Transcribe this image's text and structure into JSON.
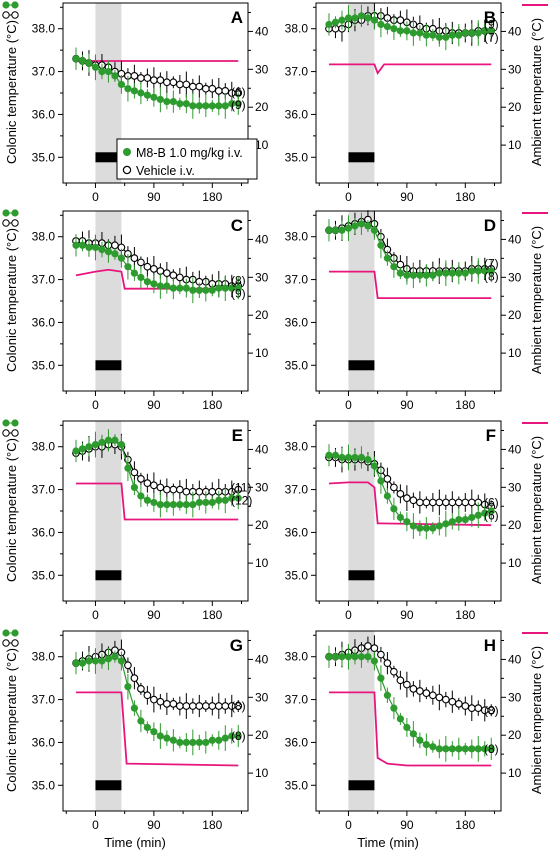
{
  "figure": {
    "left_axis_label": "Colonic temperature (°C)",
    "right_axis_label": "Ambient temperature (°C)",
    "x_axis_label": "Time (min)"
  },
  "legend": {
    "treatment_label": "M8-B 1.0 mg/kg i.v.",
    "vehicle_label": "Vehicle i.v."
  },
  "colors": {
    "treatment": "#2e9b2e",
    "vehicle": "#000000",
    "ambient": "#e8157d",
    "shade": "#dcdcdc",
    "bar": "#000000"
  },
  "chart_data": [
    {
      "type": "line",
      "panel_label": "A",
      "x": [
        -30,
        -20,
        -10,
        0,
        10,
        20,
        30,
        40,
        50,
        60,
        70,
        80,
        90,
        100,
        110,
        120,
        130,
        140,
        150,
        160,
        170,
        180,
        190,
        200,
        210,
        220
      ],
      "series": [
        {
          "role": "vehicle",
          "n_label": "(6)",
          "values": [
            37.3,
            37.25,
            37.2,
            37.15,
            37.15,
            37.1,
            37.0,
            36.95,
            36.9,
            36.9,
            36.85,
            36.85,
            36.8,
            36.8,
            36.75,
            36.75,
            36.7,
            36.7,
            36.65,
            36.65,
            36.6,
            36.6,
            36.55,
            36.55,
            36.5,
            36.5
          ]
        },
        {
          "role": "treatment",
          "n_label": "(9)",
          "values": [
            37.3,
            37.25,
            37.2,
            37.1,
            37.0,
            37.0,
            36.9,
            36.7,
            36.6,
            36.55,
            36.5,
            36.45,
            36.4,
            36.35,
            36.3,
            36.3,
            36.25,
            36.25,
            36.2,
            36.2,
            36.2,
            36.2,
            36.2,
            36.2,
            36.25,
            36.25
          ]
        }
      ],
      "ambient": {
        "x": [
          -30,
          220
        ],
        "values": [
          32.2,
          32.2
        ]
      },
      "xlim": [
        -50,
        235
      ],
      "ylim": [
        34.4,
        38.6
      ],
      "y2lim": [
        0,
        47.5
      ],
      "xticks": [
        0,
        90,
        180
      ],
      "yticks": [
        35,
        36,
        37,
        38
      ],
      "y2ticks": [
        10,
        20,
        30,
        40
      ],
      "shade_range": [
        0,
        40
      ]
    },
    {
      "type": "line",
      "panel_label": "B",
      "x": [
        -30,
        -20,
        -10,
        0,
        10,
        20,
        30,
        40,
        50,
        60,
        70,
        80,
        90,
        100,
        110,
        120,
        130,
        140,
        150,
        160,
        170,
        180,
        190,
        200,
        210,
        220
      ],
      "series": [
        {
          "role": "vehicle",
          "n_label": "(9)",
          "values": [
            38.0,
            38.0,
            38.0,
            38.1,
            38.2,
            38.2,
            38.3,
            38.3,
            38.3,
            38.25,
            38.2,
            38.2,
            38.15,
            38.1,
            38.05,
            38.0,
            38.0,
            37.95,
            37.95,
            37.9,
            37.9,
            37.9,
            37.9,
            37.95,
            37.95,
            37.95
          ]
        },
        {
          "role": "treatment",
          "n_label": "(7)",
          "values": [
            38.1,
            38.15,
            38.2,
            38.25,
            38.25,
            38.3,
            38.25,
            38.2,
            38.1,
            38.05,
            38.0,
            37.95,
            37.95,
            37.9,
            37.9,
            37.85,
            37.85,
            37.8,
            37.8,
            37.85,
            37.85,
            37.9,
            37.9,
            37.9,
            37.95,
            37.95
          ]
        }
      ],
      "ambient": {
        "x": [
          -30,
          40,
          45,
          55,
          220
        ],
        "values": [
          31.3,
          31.3,
          29.0,
          31.3,
          31.3
        ]
      },
      "xlim": [
        -50,
        235
      ],
      "ylim": [
        34.4,
        38.6
      ],
      "y2lim": [
        0,
        47.5
      ],
      "xticks": [
        0,
        90,
        180
      ],
      "yticks": [
        35,
        36,
        37,
        38
      ],
      "y2ticks": [
        10,
        20,
        30,
        40
      ],
      "shade_range": [
        0,
        40
      ]
    },
    {
      "type": "line",
      "panel_label": "C",
      "x": [
        -30,
        -20,
        -10,
        0,
        10,
        20,
        30,
        40,
        50,
        60,
        70,
        80,
        90,
        100,
        110,
        120,
        130,
        140,
        150,
        160,
        170,
        180,
        190,
        200,
        210,
        220
      ],
      "series": [
        {
          "role": "vehicle",
          "n_label": "(8)",
          "values": [
            37.9,
            37.9,
            37.85,
            37.85,
            37.85,
            37.8,
            37.8,
            37.75,
            37.6,
            37.5,
            37.4,
            37.3,
            37.25,
            37.2,
            37.15,
            37.1,
            37.05,
            37.0,
            37.0,
            36.95,
            36.95,
            36.9,
            36.9,
            36.9,
            36.85,
            36.85
          ]
        },
        {
          "role": "treatment",
          "n_label": "(9)",
          "values": [
            37.8,
            37.8,
            37.75,
            37.75,
            37.7,
            37.65,
            37.6,
            37.5,
            37.3,
            37.15,
            37.05,
            36.95,
            36.9,
            36.85,
            36.85,
            36.8,
            36.8,
            36.8,
            36.75,
            36.75,
            36.75,
            36.75,
            36.8,
            36.8,
            36.8,
            36.8
          ]
        }
      ],
      "ambient": {
        "x": [
          -30,
          0,
          20,
          40,
          45,
          220
        ],
        "values": [
          30.5,
          31.5,
          32.0,
          31.5,
          27.0,
          27.0
        ]
      },
      "xlim": [
        -50,
        235
      ],
      "ylim": [
        34.4,
        38.6
      ],
      "y2lim": [
        0,
        47.5
      ],
      "xticks": [
        0,
        90,
        180
      ],
      "yticks": [
        35,
        36,
        37,
        38
      ],
      "y2ticks": [
        10,
        20,
        30,
        40
      ],
      "shade_range": [
        0,
        40
      ]
    },
    {
      "type": "line",
      "panel_label": "D",
      "x": [
        -30,
        -20,
        -10,
        0,
        10,
        20,
        30,
        40,
        50,
        60,
        70,
        80,
        90,
        100,
        110,
        120,
        130,
        140,
        150,
        160,
        170,
        180,
        190,
        200,
        210,
        220
      ],
      "series": [
        {
          "role": "vehicle",
          "n_label": "(7)",
          "values": [
            38.15,
            38.15,
            38.2,
            38.25,
            38.3,
            38.35,
            38.4,
            38.3,
            38.0,
            37.7,
            37.5,
            37.35,
            37.25,
            37.2,
            37.2,
            37.2,
            37.2,
            37.2,
            37.2,
            37.2,
            37.2,
            37.2,
            37.25,
            37.25,
            37.25,
            37.25
          ]
        },
        {
          "role": "treatment",
          "n_label": "(8)",
          "values": [
            38.15,
            38.15,
            38.15,
            38.2,
            38.25,
            38.3,
            38.25,
            38.15,
            37.8,
            37.5,
            37.3,
            37.15,
            37.1,
            37.1,
            37.1,
            37.1,
            37.1,
            37.15,
            37.15,
            37.15,
            37.15,
            37.15,
            37.2,
            37.2,
            37.2,
            37.2
          ]
        }
      ],
      "ambient": {
        "x": [
          -30,
          40,
          45,
          220
        ],
        "values": [
          31.5,
          31.5,
          24.5,
          24.5
        ]
      },
      "xlim": [
        -50,
        235
      ],
      "ylim": [
        34.4,
        38.6
      ],
      "y2lim": [
        0,
        47.5
      ],
      "xticks": [
        0,
        90,
        180
      ],
      "yticks": [
        35,
        36,
        37,
        38
      ],
      "y2ticks": [
        10,
        20,
        30,
        40
      ],
      "shade_range": [
        0,
        40
      ]
    },
    {
      "type": "line",
      "panel_label": "E",
      "x": [
        -30,
        -20,
        -10,
        0,
        10,
        20,
        30,
        40,
        50,
        60,
        70,
        80,
        90,
        100,
        110,
        120,
        130,
        140,
        150,
        160,
        170,
        180,
        190,
        200,
        210,
        220
      ],
      "series": [
        {
          "role": "vehicle",
          "n_label": "(11)",
          "values": [
            37.85,
            37.9,
            37.95,
            38.0,
            38.0,
            38.05,
            38.05,
            38.0,
            37.7,
            37.4,
            37.25,
            37.15,
            37.1,
            37.05,
            37.0,
            37.0,
            37.0,
            36.95,
            36.95,
            36.95,
            36.95,
            36.95,
            36.95,
            36.95,
            36.95,
            37.0
          ]
        },
        {
          "role": "treatment",
          "n_label": "(12)",
          "values": [
            37.9,
            37.95,
            38.0,
            38.05,
            38.1,
            38.15,
            38.15,
            38.05,
            37.5,
            37.05,
            36.85,
            36.75,
            36.7,
            36.65,
            36.65,
            36.65,
            36.65,
            36.65,
            36.65,
            36.7,
            36.7,
            36.7,
            36.75,
            36.75,
            36.8,
            36.8
          ]
        }
      ],
      "ambient": {
        "x": [
          -30,
          40,
          45,
          220
        ],
        "values": [
          31.0,
          31.0,
          21.5,
          21.5
        ]
      },
      "xlim": [
        -50,
        235
      ],
      "ylim": [
        34.4,
        38.6
      ],
      "y2lim": [
        0,
        47.5
      ],
      "xticks": [
        0,
        90,
        180
      ],
      "yticks": [
        35,
        36,
        37,
        38
      ],
      "y2ticks": [
        10,
        20,
        30,
        40
      ],
      "shade_range": [
        0,
        40
      ]
    },
    {
      "type": "line",
      "panel_label": "F",
      "x": [
        -30,
        -20,
        -10,
        0,
        10,
        20,
        30,
        40,
        50,
        60,
        70,
        80,
        90,
        100,
        110,
        120,
        130,
        140,
        150,
        160,
        170,
        180,
        190,
        200,
        210,
        220
      ],
      "series": [
        {
          "role": "vehicle",
          "n_label": "(6)",
          "values": [
            37.75,
            37.75,
            37.7,
            37.7,
            37.7,
            37.7,
            37.65,
            37.6,
            37.45,
            37.25,
            37.05,
            36.9,
            36.8,
            36.75,
            36.7,
            36.7,
            36.7,
            36.7,
            36.7,
            36.7,
            36.7,
            36.7,
            36.7,
            36.7,
            36.65,
            36.6
          ]
        },
        {
          "role": "treatment",
          "n_label": "(6)",
          "values": [
            37.8,
            37.8,
            37.75,
            37.75,
            37.75,
            37.75,
            37.7,
            37.55,
            37.2,
            36.85,
            36.55,
            36.35,
            36.25,
            36.15,
            36.1,
            36.1,
            36.1,
            36.15,
            36.2,
            36.25,
            36.3,
            36.3,
            36.35,
            36.4,
            36.45,
            36.5
          ]
        }
      ],
      "ambient": {
        "x": [
          -30,
          0,
          30,
          40,
          45,
          220
        ],
        "values": [
          31.0,
          31.3,
          31.3,
          30.0,
          20.5,
          20.0
        ]
      },
      "xlim": [
        -50,
        235
      ],
      "ylim": [
        34.4,
        38.6
      ],
      "y2lim": [
        0,
        47.5
      ],
      "xticks": [
        0,
        90,
        180
      ],
      "yticks": [
        35,
        36,
        37,
        38
      ],
      "y2ticks": [
        10,
        20,
        30,
        40
      ],
      "shade_range": [
        0,
        40
      ]
    },
    {
      "type": "line",
      "panel_label": "G",
      "x": [
        -30,
        -20,
        -10,
        0,
        10,
        20,
        30,
        40,
        50,
        60,
        70,
        80,
        90,
        100,
        110,
        120,
        130,
        140,
        150,
        160,
        170,
        180,
        190,
        200,
        210,
        220
      ],
      "series": [
        {
          "role": "vehicle",
          "n_label": "(8)",
          "values": [
            37.85,
            37.9,
            37.95,
            38.0,
            38.05,
            38.1,
            38.15,
            38.1,
            37.8,
            37.5,
            37.25,
            37.1,
            37.0,
            36.95,
            36.9,
            36.9,
            36.85,
            36.85,
            36.85,
            36.85,
            36.85,
            36.85,
            36.85,
            36.85,
            36.85,
            36.85
          ]
        },
        {
          "role": "treatment",
          "n_label": "(8)",
          "values": [
            37.85,
            37.85,
            37.9,
            37.9,
            37.9,
            37.95,
            38.0,
            37.9,
            37.3,
            36.8,
            36.5,
            36.35,
            36.25,
            36.15,
            36.1,
            36.05,
            36.0,
            36.0,
            36.0,
            36.0,
            36.0,
            36.05,
            36.05,
            36.1,
            36.15,
            36.15
          ]
        }
      ],
      "ambient": {
        "x": [
          -30,
          40,
          48,
          220
        ],
        "values": [
          31.3,
          31.3,
          12.5,
          12.0
        ]
      },
      "xlim": [
        -50,
        235
      ],
      "ylim": [
        34.4,
        38.6
      ],
      "y2lim": [
        0,
        47.5
      ],
      "xticks": [
        0,
        90,
        180
      ],
      "yticks": [
        35,
        36,
        37,
        38
      ],
      "y2ticks": [
        10,
        20,
        30,
        40
      ],
      "shade_range": [
        0,
        40
      ]
    },
    {
      "type": "line",
      "panel_label": "H",
      "x": [
        -30,
        -20,
        -10,
        0,
        10,
        20,
        30,
        40,
        50,
        60,
        70,
        80,
        90,
        100,
        110,
        120,
        130,
        140,
        150,
        160,
        170,
        180,
        190,
        200,
        210,
        220
      ],
      "series": [
        {
          "role": "vehicle",
          "n_label": "(8)",
          "values": [
            38.0,
            38.0,
            38.05,
            38.1,
            38.15,
            38.2,
            38.25,
            38.2,
            38.05,
            37.85,
            37.65,
            37.45,
            37.35,
            37.25,
            37.2,
            37.15,
            37.1,
            37.05,
            37.0,
            36.95,
            36.9,
            36.85,
            36.8,
            36.8,
            36.75,
            36.75
          ]
        },
        {
          "role": "treatment",
          "n_label": "(8)",
          "values": [
            38.0,
            38.0,
            38.0,
            38.0,
            38.0,
            38.0,
            38.0,
            37.9,
            37.5,
            37.1,
            36.8,
            36.55,
            36.35,
            36.2,
            36.05,
            35.95,
            35.9,
            35.85,
            35.85,
            35.85,
            35.85,
            35.85,
            35.85,
            35.85,
            35.85,
            35.85
          ]
        }
      ],
      "ambient": {
        "x": [
          -30,
          40,
          45,
          60,
          90,
          220
        ],
        "values": [
          31.3,
          31.3,
          14.0,
          12.5,
          12.0,
          12.0
        ]
      },
      "xlim": [
        -50,
        235
      ],
      "ylim": [
        34.4,
        38.6
      ],
      "y2lim": [
        0,
        47.5
      ],
      "xticks": [
        0,
        90,
        180
      ],
      "yticks": [
        35,
        36,
        37,
        38
      ],
      "y2ticks": [
        10,
        20,
        30,
        40
      ],
      "shade_range": [
        0,
        40
      ]
    }
  ]
}
